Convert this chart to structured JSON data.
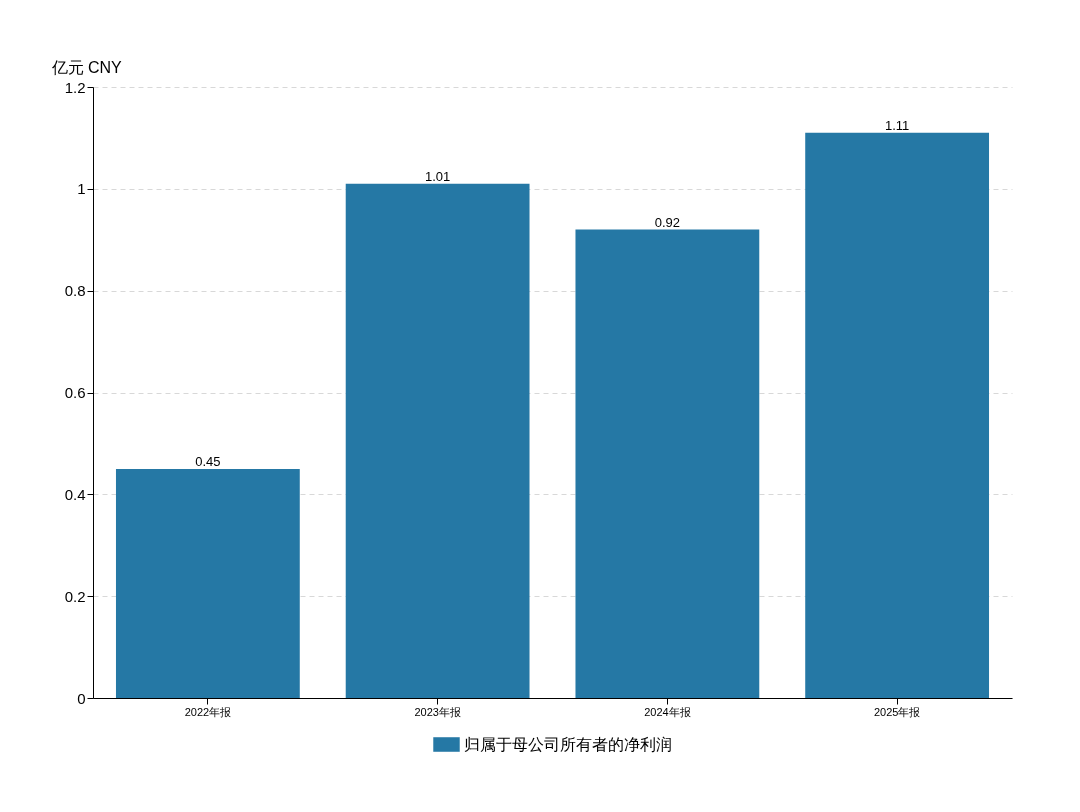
{
  "chart_data": {
    "type": "bar",
    "ylabel": "亿元  CNY",
    "categories": [
      "2022年报",
      "2023年报",
      "2024年报",
      "2025年报"
    ],
    "series": [
      {
        "name": "归属于母公司所有者的净利润",
        "color": "#2578a5",
        "values": [
          0.45,
          1.01,
          0.92,
          1.11
        ]
      }
    ],
    "ylim": [
      0,
      1.2
    ],
    "yticks": [
      0,
      0.2,
      0.4,
      0.6,
      0.8,
      1,
      1.2
    ],
    "grid": "y",
    "legend": "bottom",
    "data_labels": true
  }
}
